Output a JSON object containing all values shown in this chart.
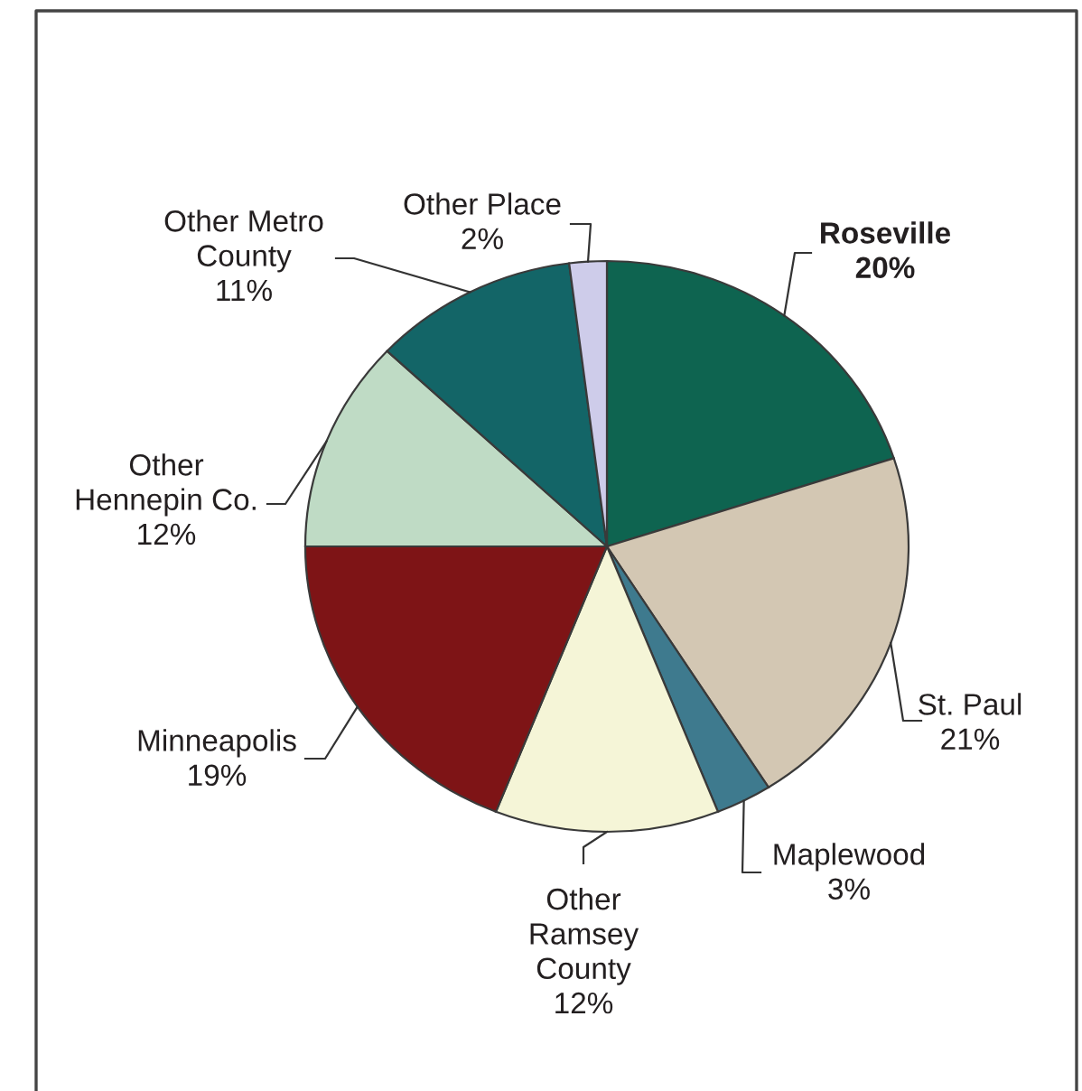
{
  "chart_data": {
    "type": "pie",
    "categories": [
      "Roseville",
      "St. Paul",
      "Maplewood",
      "Other\nRamsey\nCounty",
      "Minneapolis",
      "Other\nHennepin Co.",
      "Other Metro\nCounty",
      "Other Place"
    ],
    "values": [
      20,
      21,
      3,
      12,
      19,
      12,
      11,
      2
    ],
    "value_labels": [
      "20%",
      "21%",
      "3%",
      "12%",
      "19%",
      "12%",
      "11%",
      "2%"
    ],
    "colors": [
      "#0e6450",
      "#d3c7b3",
      "#3e7a8e",
      "#f5f5d7",
      "#7e1416",
      "#bfdbc5",
      "#136567",
      "#ceccea"
    ]
  }
}
